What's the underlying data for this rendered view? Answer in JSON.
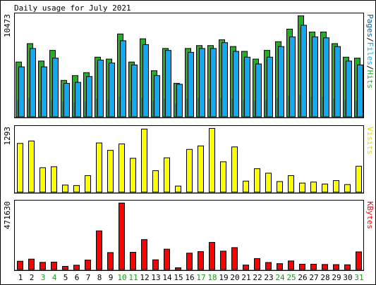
{
  "chart_data": {
    "type": "bar",
    "title": "Daily usage for July 2021",
    "days": [
      "1",
      "2",
      "3",
      "4",
      "5",
      "6",
      "7",
      "8",
      "9",
      "10",
      "11",
      "12",
      "13",
      "14",
      "15",
      "16",
      "17",
      "18",
      "19",
      "20",
      "21",
      "22",
      "23",
      "24",
      "25",
      "26",
      "27",
      "28",
      "29",
      "30",
      "31"
    ],
    "weekend_days": [
      "3",
      "4",
      "10",
      "11",
      "17",
      "18",
      "24",
      "25",
      "31"
    ],
    "colors": {
      "hits": "#22b022",
      "files": "#11aaee",
      "pages": "#0e5a8c",
      "visits": "#ffff00",
      "kbytes": "#ff0000",
      "weekday_label": "#000000",
      "weekend_label": "#11a011"
    },
    "panels": [
      {
        "id": "hits",
        "ylabel_parts": [
          {
            "text": "Pages",
            "color": "#0e5a8c"
          },
          {
            "text": "/",
            "color": "#000000"
          },
          {
            "text": "Files",
            "color": "#11aaee"
          },
          {
            "text": "/",
            "color": "#000000"
          },
          {
            "text": "Hits",
            "color": "#22b022"
          }
        ],
        "max_label": "10473",
        "ymax": 10473,
        "series": [
          {
            "name": "Hits",
            "values": [
              5700,
              7600,
              5800,
              6900,
              3800,
              4300,
              4600,
              6200,
              6000,
              8600,
              5700,
              8100,
              4800,
              7100,
              3500,
              7100,
              7400,
              7400,
              8000,
              7300,
              6800,
              6000,
              6900,
              7800,
              9100,
              10473,
              8800,
              8800,
              7600,
              6200,
              6100
            ]
          },
          {
            "name": "Files",
            "values": [
              5200,
              7100,
              5200,
              6100,
              3500,
              3600,
              4200,
              5900,
              5600,
              7900,
              5400,
              7500,
              4300,
              6900,
              3400,
              6700,
              7100,
              7100,
              7700,
              6800,
              6200,
              5500,
              6200,
              7300,
              8300,
              9500,
              8300,
              8200,
              7300,
              5800,
              5400
            ]
          },
          {
            "name": "Pages",
            "values": [
              1800,
              2000,
              1700,
              1800,
              1600,
              1500,
              1600,
              1900,
              1800,
              2100,
              1700,
              2000,
              1700,
              1900,
              1400,
              1900,
              2000,
              1900,
              2000,
              1900,
              1800,
              1700,
              1800,
              2000,
              2200,
              2300,
              2100,
              2100,
              1900,
              1800,
              1700
            ]
          }
        ]
      },
      {
        "id": "visits",
        "ylabel_parts": [
          {
            "text": "Visits",
            "color": "#dddd00"
          }
        ],
        "max_label": "1293",
        "ymax": 1293,
        "series": [
          {
            "name": "Visits",
            "values": [
              990,
              1040,
              500,
              520,
              150,
              140,
              340,
              1000,
              850,
              980,
              690,
              1280,
              440,
              700,
              130,
              870,
              940,
              1293,
              620,
              920,
              230,
              480,
              390,
              220,
              340,
              190,
              210,
              170,
              240,
              160,
              530
            ]
          }
        ]
      },
      {
        "id": "kbytes",
        "ylabel_parts": [
          {
            "text": "KBytes",
            "color": "#ff0000"
          }
        ],
        "max_label": "471630",
        "ymax": 471630,
        "series": [
          {
            "name": "KBytes",
            "values": [
              61000,
              76000,
              53000,
              55000,
              25000,
              33000,
              69000,
              275000,
              122000,
              471630,
              124000,
              214000,
              71000,
              146000,
              15000,
              118000,
              129000,
              194000,
              132000,
              157000,
              34000,
              80000,
              52000,
              44000,
              63000,
              40000,
              40000,
              38000,
              37000,
              36000,
              127000
            ]
          }
        ]
      }
    ]
  }
}
